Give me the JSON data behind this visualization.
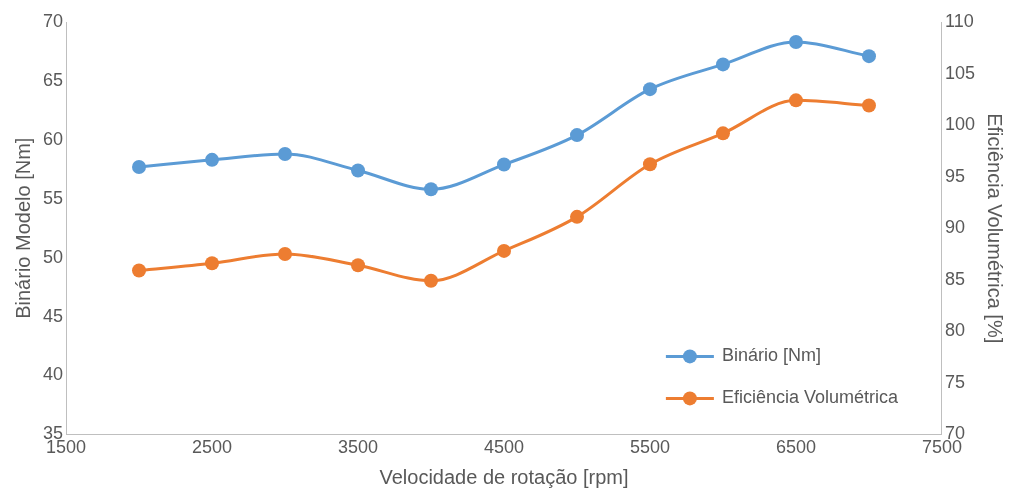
{
  "chart_data": {
    "type": "line",
    "xlabel": "Velocidade de rotação [rpm]",
    "ylabel": "Binário Modelo [Nm]",
    "y2label": "Eficiência Volumétrica [%]",
    "x": [
      2000,
      2500,
      3000,
      3500,
      4000,
      4500,
      5000,
      5500,
      6000,
      6500,
      7000
    ],
    "series": [
      {
        "name": "Binário [Nm]",
        "color": "#5b9bd5",
        "values": [
          57.7,
          58.3,
          58.8,
          57.4,
          55.8,
          57.9,
          60.4,
          64.3,
          66.4,
          68.3,
          67.1
        ]
      },
      {
        "name": "Eficiência Volumétrica",
        "color": "#ed7d31",
        "axis": "y2",
        "values": [
          85.9,
          86.6,
          87.5,
          86.4,
          84.9,
          87.8,
          91.1,
          96.2,
          99.2,
          102.4,
          101.9
        ]
      }
    ],
    "xlim": [
      1500,
      7500
    ],
    "xticks": [
      1500,
      2500,
      3500,
      4500,
      5500,
      6500,
      7500
    ],
    "ylim": [
      35,
      70
    ],
    "yticks": [
      35,
      40,
      45,
      50,
      55,
      60,
      65,
      70
    ],
    "y2lim": [
      70,
      110
    ],
    "y2ticks": [
      70,
      75,
      80,
      85,
      90,
      95,
      100,
      105,
      110
    ],
    "grid": false,
    "legend": "bottom right",
    "marker": "circle",
    "line_style": "solid"
  }
}
